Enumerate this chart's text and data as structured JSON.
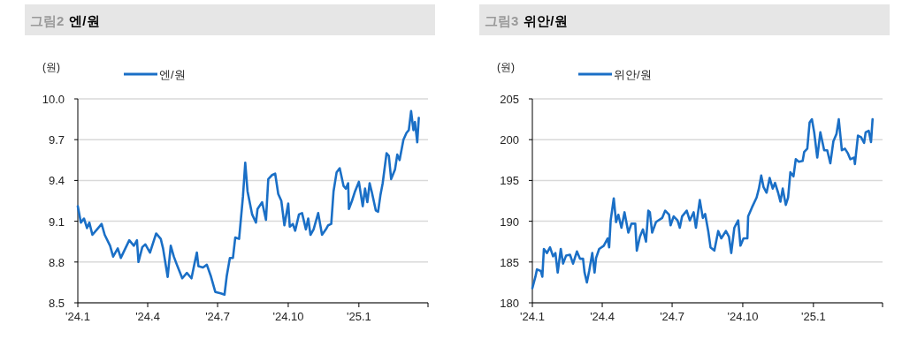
{
  "chart_data": [
    {
      "type": "line",
      "title": "그림2 엔/원",
      "ylabel": "(원)",
      "legend": "top",
      "grid": "y",
      "xlim": [
        "2024-01-01",
        "2025-04-01"
      ],
      "xticks": [
        {
          "value": "2024-01-01",
          "label": "'24.1"
        },
        {
          "value": "2024-04-01",
          "label": "'24.4"
        },
        {
          "value": "2024-07-01",
          "label": "'24.7"
        },
        {
          "value": "2024-10-01",
          "label": "'24.10"
        },
        {
          "value": "2025-01-01",
          "label": "'25.1"
        },
        {
          "value": "2025-04-01",
          "label": null
        }
      ],
      "ylim": [
        8.5,
        10.0
      ],
      "yticks": [
        {
          "value": 8.5,
          "label": "8.5"
        },
        {
          "value": 8.8,
          "label": "8.8"
        },
        {
          "value": 9.1,
          "label": "9.1"
        },
        {
          "value": 9.4,
          "label": "9.4"
        },
        {
          "value": 9.7,
          "label": "9.7"
        },
        {
          "value": 10.0,
          "label": "10.0"
        }
      ],
      "series": [
        {
          "name": "엔/원",
          "color": "#1a6fc6",
          "x": [
            "2024-01-01",
            "2024-01-05",
            "2024-01-09",
            "2024-01-13",
            "2024-01-16",
            "2024-01-20",
            "2024-01-26",
            "2024-02-01",
            "2024-02-05",
            "2024-02-12",
            "2024-02-16",
            "2024-02-22",
            "2024-02-26",
            "2024-03-08",
            "2024-03-14",
            "2024-03-18",
            "2024-03-20",
            "2024-03-25",
            "2024-03-29",
            "2024-04-04",
            "2024-04-12",
            "2024-04-18",
            "2024-04-21",
            "2024-04-27",
            "2024-05-01",
            "2024-05-05",
            "2024-05-09",
            "2024-05-16",
            "2024-05-22",
            "2024-05-28",
            "2024-06-01",
            "2024-06-04",
            "2024-06-06",
            "2024-06-12",
            "2024-06-17",
            "2024-06-22",
            "2024-06-28",
            "2024-07-05",
            "2024-07-10",
            "2024-07-13",
            "2024-07-17",
            "2024-07-21",
            "2024-07-24",
            "2024-07-29",
            "2024-08-03",
            "2024-08-06",
            "2024-08-09",
            "2024-08-15",
            "2024-08-20",
            "2024-08-22",
            "2024-08-28",
            "2024-09-02",
            "2024-09-05",
            "2024-09-10",
            "2024-09-14",
            "2024-09-18",
            "2024-09-22",
            "2024-09-26",
            "2024-10-01",
            "2024-10-03",
            "2024-10-07",
            "2024-10-10",
            "2024-10-15",
            "2024-10-19",
            "2024-10-24",
            "2024-10-27",
            "2024-10-30",
            "2024-11-03",
            "2024-11-09",
            "2024-11-14",
            "2024-11-19",
            "2024-11-22",
            "2024-11-26",
            "2024-11-29",
            "2024-12-03",
            "2024-12-07",
            "2024-12-12",
            "2024-12-15",
            "2024-12-18",
            "2024-12-19",
            "2024-12-23",
            "2024-12-27",
            "2025-01-01",
            "2025-01-06",
            "2025-01-09",
            "2025-01-12",
            "2025-01-15",
            "2025-01-18",
            "2025-01-23",
            "2025-01-26",
            "2025-01-29",
            "2025-02-01",
            "2025-02-06",
            "2025-02-09",
            "2025-02-12",
            "2025-02-17",
            "2025-02-20",
            "2025-02-23",
            "2025-02-28",
            "2025-03-04",
            "2025-03-07",
            "2025-03-10",
            "2025-03-13",
            "2025-03-15",
            "2025-03-18",
            "2025-03-20"
          ],
          "values": [
            9.21,
            9.09,
            9.12,
            9.05,
            9.09,
            9.0,
            9.04,
            9.08,
            9.0,
            8.92,
            8.84,
            8.9,
            8.83,
            8.96,
            8.92,
            8.96,
            8.8,
            8.91,
            8.93,
            8.87,
            9.01,
            8.97,
            8.9,
            8.69,
            8.92,
            8.84,
            8.78,
            8.68,
            8.72,
            8.68,
            8.79,
            8.87,
            8.77,
            8.76,
            8.78,
            8.7,
            8.58,
            8.57,
            8.56,
            8.7,
            8.83,
            8.83,
            8.98,
            8.97,
            9.28,
            9.53,
            9.32,
            9.15,
            9.09,
            9.19,
            9.24,
            9.11,
            9.41,
            9.44,
            9.45,
            9.3,
            9.25,
            9.07,
            9.23,
            9.06,
            9.08,
            9.03,
            9.15,
            9.16,
            9.04,
            9.12,
            9.0,
            9.04,
            9.16,
            9.0,
            9.04,
            9.07,
            9.08,
            9.32,
            9.46,
            9.49,
            9.36,
            9.34,
            9.38,
            9.19,
            9.25,
            9.32,
            9.39,
            9.21,
            9.34,
            9.24,
            9.38,
            9.31,
            9.18,
            9.17,
            9.29,
            9.38,
            9.6,
            9.58,
            9.41,
            9.48,
            9.59,
            9.55,
            9.7,
            9.75,
            9.77,
            9.91,
            9.77,
            9.83,
            9.68,
            9.86
          ]
        }
      ]
    },
    {
      "type": "line",
      "title": "그림3 위안/원",
      "ylabel": "(원)",
      "legend": "top",
      "grid": "y",
      "xlim": [
        "2024-01-01",
        "2025-04-01"
      ],
      "xticks": [
        {
          "value": "2024-01-01",
          "label": "'24.1"
        },
        {
          "value": "2024-04-01",
          "label": "'24.4"
        },
        {
          "value": "2024-07-01",
          "label": "'24.7"
        },
        {
          "value": "2024-10-01",
          "label": "'24.10"
        },
        {
          "value": "2025-01-01",
          "label": "'25.1"
        },
        {
          "value": "2025-04-01",
          "label": null
        }
      ],
      "ylim": [
        180,
        205
      ],
      "yticks": [
        180,
        185,
        190,
        195,
        200,
        205
      ],
      "series": [
        {
          "name": "위안/원",
          "color": "#1a6fc6",
          "x": [
            "2024-01-01",
            "2024-01-05",
            "2024-01-07",
            "2024-01-12",
            "2024-01-14",
            "2024-01-16",
            "2024-01-20",
            "2024-01-24",
            "2024-01-28",
            "2024-01-31",
            "2024-02-03",
            "2024-02-07",
            "2024-02-10",
            "2024-02-14",
            "2024-02-19",
            "2024-02-23",
            "2024-02-28",
            "2024-03-03",
            "2024-03-07",
            "2024-03-09",
            "2024-03-12",
            "2024-03-15",
            "2024-03-19",
            "2024-03-22",
            "2024-03-24",
            "2024-03-28",
            "2024-04-03",
            "2024-04-08",
            "2024-04-10",
            "2024-04-12",
            "2024-04-16",
            "2024-04-19",
            "2024-04-22",
            "2024-04-26",
            "2024-04-30",
            "2024-05-05",
            "2024-05-09",
            "2024-05-14",
            "2024-05-16",
            "2024-05-20",
            "2024-05-24",
            "2024-05-28",
            "2024-05-31",
            "2024-06-02",
            "2024-06-05",
            "2024-06-10",
            "2024-06-18",
            "2024-06-22",
            "2024-06-27",
            "2024-06-29",
            "2024-07-03",
            "2024-07-08",
            "2024-07-11",
            "2024-07-14",
            "2024-07-20",
            "2024-07-24",
            "2024-07-29",
            "2024-08-01",
            "2024-08-06",
            "2024-08-10",
            "2024-08-13",
            "2024-08-17",
            "2024-08-20",
            "2024-08-25",
            "2024-08-30",
            "2024-09-03",
            "2024-09-09",
            "2024-09-13",
            "2024-09-16",
            "2024-09-20",
            "2024-09-25",
            "2024-09-28",
            "2024-10-02",
            "2024-10-07",
            "2024-10-08",
            "2024-10-13",
            "2024-10-19",
            "2024-10-22",
            "2024-10-25",
            "2024-10-28",
            "2024-11-01",
            "2024-11-05",
            "2024-11-09",
            "2024-11-12",
            "2024-11-16",
            "2024-11-19",
            "2024-11-22",
            "2024-11-26",
            "2024-11-29",
            "2024-12-02",
            "2024-12-06",
            "2024-12-09",
            "2024-12-13",
            "2024-12-18",
            "2024-12-20",
            "2024-12-24",
            "2024-12-27",
            "2024-12-30",
            "2025-01-02",
            "2025-01-06",
            "2025-01-10",
            "2025-01-15",
            "2025-01-19",
            "2025-01-23",
            "2025-01-27",
            "2025-01-31",
            "2025-02-03",
            "2025-02-07",
            "2025-02-11",
            "2025-02-15",
            "2025-02-18",
            "2025-02-23",
            "2025-02-24",
            "2025-02-28",
            "2025-03-04",
            "2025-03-08",
            "2025-03-10",
            "2025-03-14",
            "2025-03-17",
            "2025-03-19"
          ],
          "values": [
            181.8,
            183.2,
            184.1,
            183.9,
            183.2,
            186.6,
            186.1,
            186.8,
            185.7,
            186.1,
            183.7,
            186.6,
            184.8,
            185.8,
            185.9,
            184.8,
            186.3,
            185.4,
            185.4,
            183.7,
            182.5,
            183.9,
            186.1,
            183.7,
            185.5,
            186.6,
            187.0,
            187.9,
            186.8,
            190.1,
            192.8,
            189.9,
            190.8,
            189.2,
            191.1,
            188.6,
            189.7,
            189.7,
            186.4,
            188.1,
            189.0,
            187.5,
            191.3,
            191.1,
            188.6,
            189.9,
            190.4,
            191.3,
            190.8,
            189.5,
            190.6,
            190.1,
            189.2,
            190.6,
            191.3,
            190.1,
            191.1,
            189.2,
            192.6,
            190.4,
            190.9,
            188.8,
            186.8,
            186.4,
            188.8,
            187.9,
            188.8,
            188.1,
            186.1,
            189.2,
            190.1,
            187.0,
            187.9,
            187.9,
            190.6,
            191.7,
            192.9,
            194.0,
            195.6,
            194.2,
            193.5,
            195.3,
            194.0,
            194.7,
            193.5,
            192.4,
            194.0,
            192.0,
            192.9,
            196.0,
            195.5,
            197.6,
            197.3,
            197.4,
            198.5,
            198.9,
            202.1,
            202.5,
            200.9,
            197.8,
            200.9,
            198.7,
            198.7,
            197.1,
            199.8,
            200.7,
            202.5,
            198.7,
            198.9,
            198.3,
            197.6,
            197.8,
            197.0,
            200.5,
            200.3,
            199.6,
            200.9,
            201.1,
            199.7,
            202.5
          ]
        }
      ]
    }
  ]
}
